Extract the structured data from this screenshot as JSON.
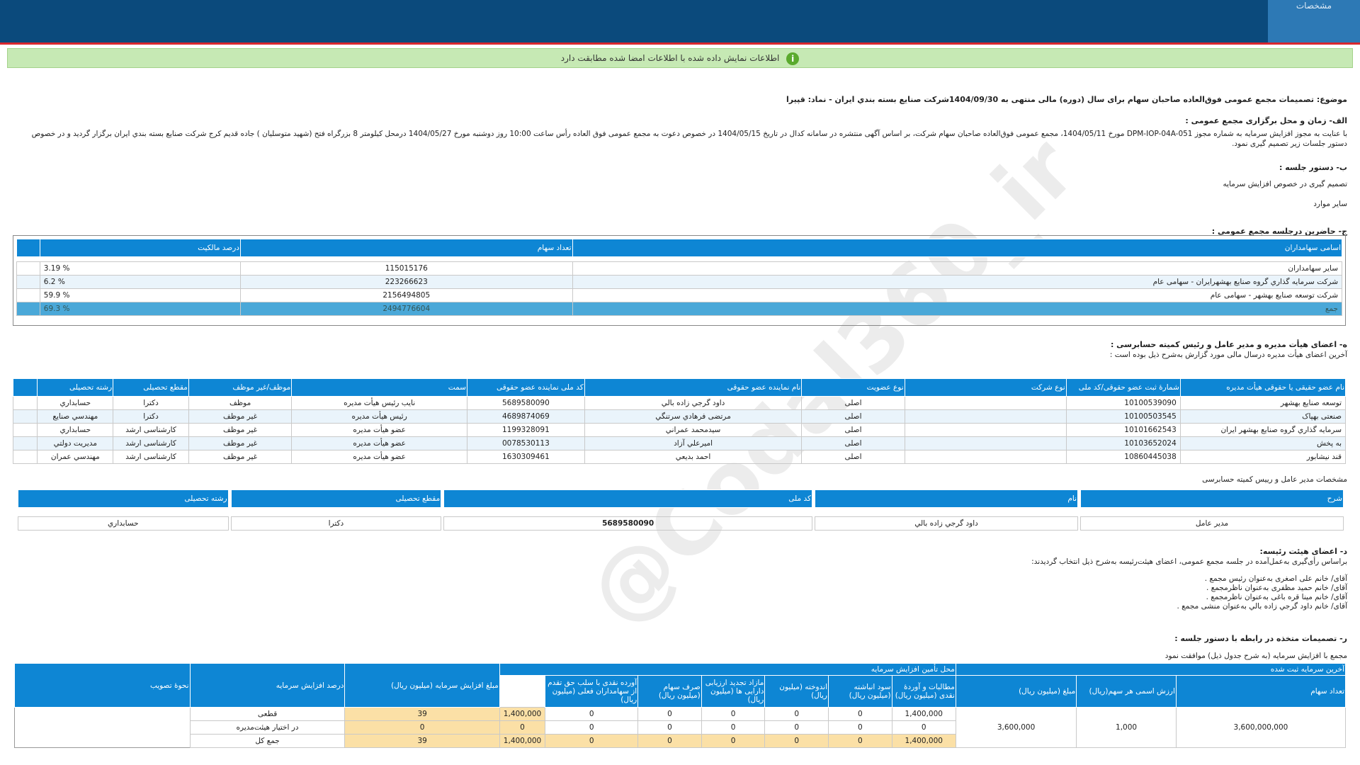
{
  "header": {
    "tab_label": "مشخصات"
  },
  "banner": {
    "text": "اطلاعات نمایش داده شده با اطلاعات امضا شده مطابقت دارد"
  },
  "doc": {
    "subject": "موضوع: تصمیمات مجمع عمومی فوق‌العاده صاحبان سهام برای سال (دوره) مالی منتهی به 1404/09/30شرکت صنايع بسته بندي ايران - نماد: قپيرا",
    "sec_a_title": "الف- زمان و محل برگزاری مجمع عمومی :",
    "sec_a_text": "با عنایت به مجوز افزایش سرمایه به شماره مجوز DPM-IOP-04A-051 مورخ 1404/05/11، مجمع عمومی فوق‌العاده صاحبان سهام شرکت، بر اساس آگهی منتشره در سامانه کدال در تاریخ 1404/05/15 در خصوص دعوت به مجمع عمومی فوق العاده رأس ساعت 10:00 روز دوشنبه مورخ 1404/05/27 درمحل کیلومتر 8 بزرگراه فتح (شهید متوسلیان ) جاده قدیم کرج شرکت صنایع بسته بندي ايران   برگزار گردید و در خصوص دستور جلسات زیر تصمیم گیری نمود.",
    "sec_b_title": "ب- دستور جلسه :",
    "sec_b_items": [
      "تصمیم گیری در خصوص افزایش سرمایه",
      "سایر موارد"
    ],
    "sec_c_title": "ج- حاضرین درجلسه مجمع عمومی :",
    "sec_d_title": "ه- اعضای هیأت مدیره و مدیر عامل و رئیس کمیته حسابرسی :",
    "sec_d_sub": "آخرین اعضای هیأت مدیره درسال مالی مورد گزارش به‌شرح ذیل بوده است :",
    "ceo_caption": "مشخصات مدیر عامل و رییس کمیته حسابرسی",
    "sec_e_title": "د- اعضای هیئت رئیسه:",
    "sec_e_sub": "براساس رأی‌گیری به‌عمل‌آمده در جلسه مجمع عمومی، اعضای هیئت‌رئیسه به‌شرح ذیل انتخاب گردیدند:",
    "presidium": [
      "آقای/ خانم   علی اصغری   به‌عنوان رئیس مجمع .",
      "آقای/ خانم   حمید مظفری  به‌عنوان ناظرمجمع .",
      "آقای/ خانم   مینا قره باغی  به‌عنوان ناظرمجمع .",
      "آقای/ خانم   داود گرجي زاده بالي  به‌عنوان منشی مجمع ."
    ],
    "sec_f_title": "ر- تصمیمات متخذه در رابطه با دستور جلسه :",
    "sec_f_sub": "مجمع با افزایش سرمایه (به شرح جدول ذیل) موافقت نمود"
  },
  "shareholders": {
    "headers": [
      "اسامی سهامداران",
      "تعداد سهام",
      "درصد مالکیت"
    ],
    "rows": [
      {
        "name": "سایر سهامداران",
        "shares": "115015176",
        "percent": "% 3.19"
      },
      {
        "name": "شركت سرمايه گذاري گروه صنايع بهشهرايران - سهامی عام",
        "shares": "223266623",
        "percent": "% 6.2"
      },
      {
        "name": "شرکت توسعه صنايع بهشهر - سهامی عام",
        "shares": "2156494805",
        "percent": "% 59.9"
      },
      {
        "name": "جمع",
        "shares": "2494776604",
        "percent": "% 69.3"
      }
    ]
  },
  "board": {
    "headers": [
      "نام عضو حقیقی یا حقوقی هیأت مدیره",
      "شمارهٔ ثبت عضو حقوقی/کد ملی",
      "نوع شرکت",
      "نوع عضویت",
      "نام نماینده عضو حقوقی",
      "کد ملی نماینده عضو حقوقی",
      "سمت",
      "موظف/غیر موظف",
      "مقطع تحصیلی",
      "رشته تحصیلی"
    ],
    "rows": [
      [
        "توسعه صنایع بهشهر",
        "10100539090",
        "",
        "اصلی",
        "داود گرجي زاده بالي",
        "5689580090",
        "نایب رئیس هیأت مدیره",
        "موظف",
        "دکترا",
        "حسابداري"
      ],
      [
        "صنعتی بهپاک",
        "10100503545",
        "",
        "اصلی",
        "مرتضی فرهادي سرتنگي",
        "4689874069",
        "رئیس هیأت مدیره",
        "غیر موظف",
        "دکترا",
        "مهندسي صنايع"
      ],
      [
        "سرمایه گذاري گروه صنايع بهشهر ايران",
        "10101662543",
        "",
        "اصلی",
        "سيدمحمد عمراني",
        "1199328091",
        "عضو هیأت مدیره",
        "غیر موظف",
        "کارشناسی ارشد",
        "حسابداري"
      ],
      [
        "به پخش",
        "10103652024",
        "",
        "اصلی",
        "اميرعلي آزاد",
        "0078530113",
        "عضو هیأت مدیره",
        "غیر موظف",
        "کارشناسی ارشد",
        "مديريت دولتي"
      ],
      [
        "قند نيشابور",
        "10860445038",
        "",
        "اصلی",
        "احمد بديعي",
        "1630309461",
        "عضو هیأت مدیره",
        "غیر موظف",
        "کارشناسی ارشد",
        "مهندسي عمران"
      ]
    ]
  },
  "ceo": {
    "headers": [
      "شرح",
      "نام",
      "کد ملی",
      "مقطع تحصیلی",
      "رشته تحصیلی"
    ],
    "row": [
      "مدیر عامل",
      "داود گرجي زاده بالي",
      "5689580090",
      "دکترا",
      "حسابداري"
    ]
  },
  "capital": {
    "group_last": "آخرین سرمایه ثبت شده",
    "group_source": "محل تأمین  افزایش سرمایه",
    "h_shares": "تعداد سهام",
    "h_nominal": "ارزش اسمی هر سهم(ریال)",
    "h_amount": "مبلغ (میلیون ریال)",
    "h_claims": "مطالبات و آوردهٔ نقدی (میلیون ریال)",
    "h_retained": "سود انباشته (میلیون ریال)",
    "h_reserve": "اندوخته (میلیون ریال)",
    "h_reval": "مازاد تجدید ارزیابی دارایی ها (میلیون ریال)",
    "h_premium": "صرف سهام (میلیون ریال)",
    "h_cash": "آورده نقدی با سلب حق تقدم از سهامداران فعلی (میلیون ریال)",
    "h_increase": "مبلغ افزایش سرمایه (میلیون ریال)",
    "h_pct": "درصد افزایش سرمایه",
    "h_method": "نحوهٔ تصویب",
    "last_shares": "3,600,000,000",
    "last_nominal": "1,000",
    "last_amount": "3,600,000",
    "rows": [
      {
        "claims": "1,400,000",
        "retained": "0",
        "reserve": "0",
        "reval": "0",
        "premium": "0",
        "cash": "0",
        "increase": "1,400,000",
        "pct": "39",
        "method": "قطعی"
      },
      {
        "claims": "0",
        "retained": "0",
        "reserve": "0",
        "reval": "0",
        "premium": "0",
        "cash": "0",
        "increase": "0",
        "pct": "0",
        "method": "در اختیار هیئت‌مدیره"
      },
      {
        "claims": "1,400,000",
        "retained": "0",
        "reserve": "0",
        "reval": "0",
        "premium": "0",
        "cash": "0",
        "increase": "1,400,000",
        "pct": "39",
        "method": "جمع کل"
      }
    ]
  },
  "watermark": "@Codal360_ir"
}
